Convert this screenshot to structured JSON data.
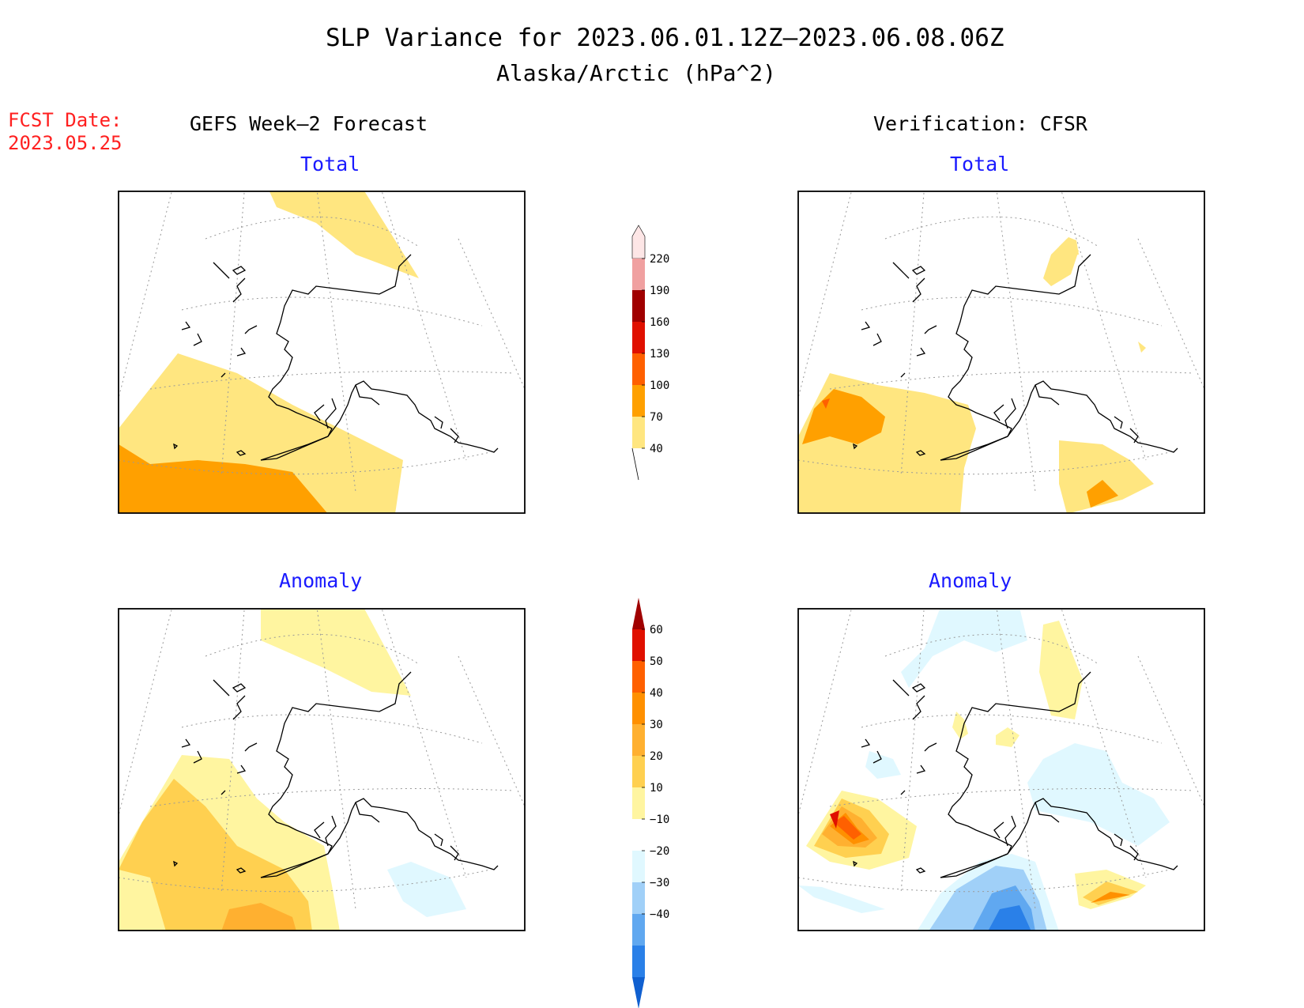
{
  "title": "SLP Variance for 2023.06.01.12Z–2023.06.08.06Z",
  "subtitle": "Alaska/Arctic (hPa^2)",
  "fcst_date": {
    "label": "FCST Date:",
    "value": "2023.05.25"
  },
  "columns": {
    "left": "GEFS Week–2 Forecast",
    "right": "Verification: CFSR"
  },
  "panels": {
    "top_left": "Total",
    "top_right": "Total",
    "bottom_left": "Anomaly",
    "bottom_right": "Anomaly"
  },
  "total_scale": {
    "levels": [
      "40",
      "70",
      "100",
      "130",
      "160",
      "190",
      "220"
    ],
    "colors": [
      "#ffe680",
      "#ffa000",
      "#ff6000",
      "#e01000",
      "#a00000",
      "#f0a0a0",
      "#fde6e6"
    ]
  },
  "anomaly_scale": {
    "levels": [
      "−40",
      "−30",
      "−20",
      "−10",
      "10",
      "20",
      "30",
      "40",
      "50",
      "60"
    ],
    "colors": [
      "#1060d0",
      "#2a80e8",
      "#60a8f0",
      "#a0d0f8",
      "#e0f8ff",
      "#ffffff",
      "#fff5a0",
      "#ffd050",
      "#ffb030",
      "#ff9000",
      "#ff6000",
      "#e01000",
      "#a00000"
    ]
  },
  "colors": {
    "label_blue": "#1a1aff",
    "fcst_red": "#ff2020"
  }
}
